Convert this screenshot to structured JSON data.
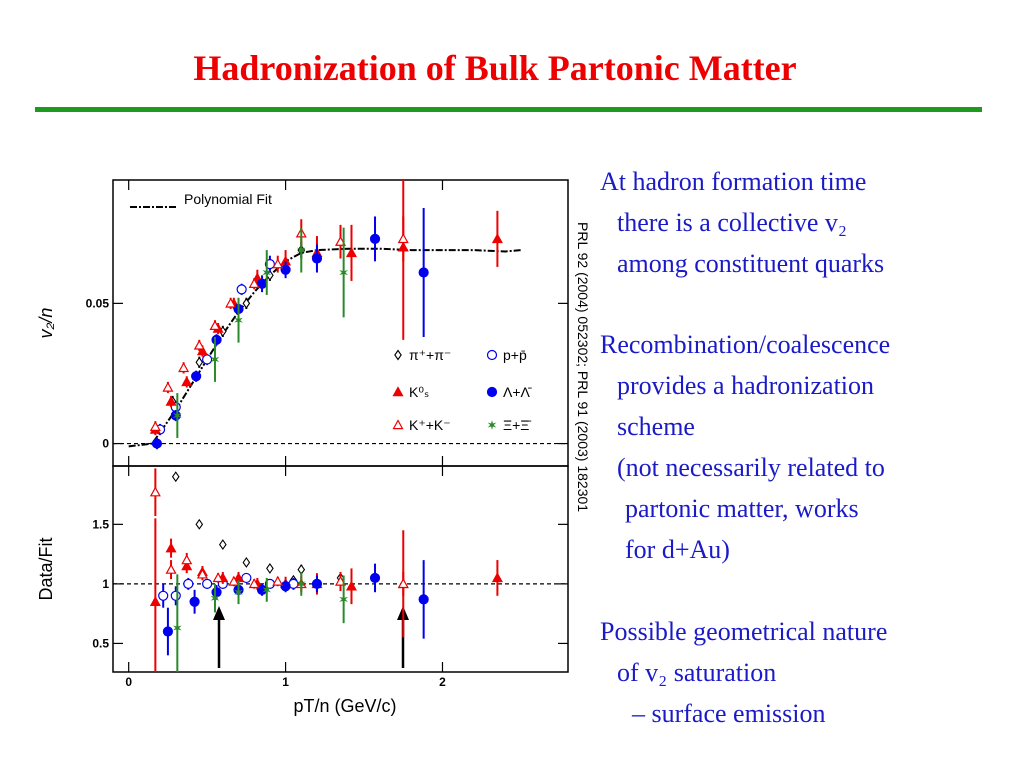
{
  "slide_title": "Hadronization of Bulk Partonic Matter",
  "citation": "PRL 92 (2004) 052302; PRL 91 (2003) 182301",
  "notes": [
    [
      "At hadron formation time",
      "there is a collective v₂",
      "among constituent quarks"
    ],
    [
      "Recombination/coalescence",
      "provides a hadronization",
      "scheme",
      "(not necessarily related to",
      "partonic matter, works",
      "for d+Au)"
    ],
    [
      "Possible geometrical nature",
      "of v₂ saturation",
      "– surface emission"
    ]
  ],
  "chart_data": [
    {
      "type": "scatter",
      "ylabel": "v₂/n",
      "xlim": [
        -0.1,
        2.8
      ],
      "ylim": [
        -0.008,
        0.094
      ],
      "xticks": [
        0,
        1,
        2
      ],
      "yticks": [
        0,
        0.05
      ],
      "refline": 0,
      "series": [
        {
          "name": "Polynomial Fit",
          "style": "dash-dot",
          "color": "#000000",
          "x": [
            0.0,
            0.15,
            0.2,
            0.3,
            0.4,
            0.5,
            0.6,
            0.7,
            0.8,
            0.9,
            1.0,
            1.1,
            1.2,
            1.4,
            1.6,
            1.8,
            2.0,
            2.2,
            2.4,
            2.5
          ],
          "values": [
            -0.001,
            0.0,
            0.004,
            0.012,
            0.021,
            0.03,
            0.039,
            0.047,
            0.054,
            0.06,
            0.065,
            0.068,
            0.069,
            0.0695,
            0.0695,
            0.069,
            0.069,
            0.069,
            0.0685,
            0.069
          ]
        },
        {
          "name": "π⁺+π⁻",
          "marker": "diamond-open",
          "color": "#000000",
          "x": [
            0.28,
            0.45,
            0.6,
            0.75,
            0.9,
            1.1
          ],
          "values": [
            0.015,
            0.029,
            0.04,
            0.05,
            0.06,
            0.069
          ],
          "errors": [
            0.002,
            0.002,
            0.002,
            0.002,
            0.002,
            0.003
          ]
        },
        {
          "name": "p+p̄",
          "marker": "circle-open",
          "color": "#0000ee",
          "x": [
            0.2,
            0.3,
            0.5,
            0.72,
            0.9
          ],
          "values": [
            0.005,
            0.013,
            0.03,
            0.055,
            0.064
          ],
          "errors": [
            0.002,
            0.002,
            0.002,
            0.002,
            0.003
          ]
        },
        {
          "name": "K⁰ₛ",
          "marker": "triangle",
          "color": "#ee0000",
          "x": [
            0.17,
            0.27,
            0.37,
            0.47,
            0.57,
            0.67,
            0.82,
            1.0,
            1.2,
            1.42,
            1.75,
            2.35
          ],
          "values": [
            0.005,
            0.015,
            0.022,
            0.033,
            0.041,
            0.05,
            0.059,
            0.065,
            0.068,
            0.068,
            0.07,
            0.073
          ],
          "errors": [
            0.002,
            0.002,
            0.002,
            0.002,
            0.002,
            0.002,
            0.003,
            0.004,
            0.006,
            0.01,
            0.033,
            0.01
          ]
        },
        {
          "name": "Λ+Λ̄",
          "marker": "circle",
          "color": "#0000ee",
          "x": [
            0.18,
            0.3,
            0.43,
            0.56,
            0.7,
            0.85,
            1.0,
            1.2,
            1.57,
            1.88
          ],
          "values": [
            0.0,
            0.01,
            0.024,
            0.037,
            0.048,
            0.057,
            0.062,
            0.066,
            0.073,
            0.061
          ],
          "errors": [
            0.002,
            0.002,
            0.002,
            0.002,
            0.002,
            0.003,
            0.003,
            0.005,
            0.008,
            0.023
          ]
        },
        {
          "name": "K⁺+K⁻",
          "marker": "triangle-open",
          "color": "#ee0000",
          "x": [
            0.17,
            0.25,
            0.35,
            0.45,
            0.55,
            0.65,
            0.8,
            0.95,
            1.1,
            1.35,
            1.75
          ],
          "values": [
            0.006,
            0.02,
            0.027,
            0.035,
            0.042,
            0.05,
            0.057,
            0.064,
            0.075,
            0.072,
            0.073
          ],
          "errors": [
            0.002,
            0.002,
            0.002,
            0.002,
            0.002,
            0.002,
            0.002,
            0.003,
            0.005,
            0.006,
            0.008
          ]
        },
        {
          "name": "Ξ+Ξ̄",
          "marker": "star",
          "color": "#2a8a2a",
          "x": [
            0.31,
            0.55,
            0.7,
            0.88,
            1.1,
            1.37
          ],
          "values": [
            0.01,
            0.03,
            0.044,
            0.061,
            0.069,
            0.061
          ],
          "errors": [
            0.008,
            0.008,
            0.008,
            0.008,
            0.008,
            0.016
          ]
        }
      ]
    },
    {
      "type": "scatter",
      "ylabel": "Data/Fit",
      "xlabel": "pT/n (GeV/c)",
      "xlim": [
        -0.1,
        2.8
      ],
      "ylim": [
        0.26,
        1.99
      ],
      "xticks": [
        0,
        1,
        2
      ],
      "yticks": [
        0.5,
        1,
        1.5
      ],
      "refline": 1,
      "series": [
        {
          "marker": "diamond-open",
          "color": "#000000",
          "x": [
            0.3,
            0.45,
            0.6,
            0.75,
            0.9,
            1.05,
            1.1,
            1.35
          ],
          "values": [
            1.9,
            1.5,
            1.33,
            1.18,
            1.13,
            1.03,
            1.12,
            1.05
          ],
          "errors": [
            0.02,
            0.02,
            0.02,
            0.02,
            0.02,
            0.03,
            0.04,
            0.05
          ]
        },
        {
          "marker": "circle-open",
          "color": "#0000ee",
          "x": [
            0.22,
            0.3,
            0.38,
            0.5,
            0.6,
            0.75,
            0.9,
            1.05
          ],
          "values": [
            0.9,
            0.9,
            1.0,
            1.0,
            1.0,
            1.05,
            1.0,
            1.0
          ],
          "errors": [
            0.1,
            0.08,
            0.05,
            0.04,
            0.04,
            0.04,
            0.04,
            0.05
          ]
        },
        {
          "marker": "triangle",
          "color": "#ee0000",
          "x": [
            0.17,
            0.27,
            0.37,
            0.47,
            0.6,
            0.7,
            0.82,
            1.0,
            1.2,
            1.42,
            1.75,
            2.35
          ],
          "values": [
            0.85,
            1.3,
            1.15,
            1.1,
            1.05,
            1.05,
            1.0,
            1.0,
            1.0,
            0.98,
            1.0,
            1.05
          ],
          "errors": [
            0.7,
            0.08,
            0.06,
            0.05,
            0.05,
            0.05,
            0.05,
            0.06,
            0.09,
            0.15,
            0.45,
            0.15
          ]
        },
        {
          "marker": "circle",
          "color": "#0000ee",
          "x": [
            0.25,
            0.42,
            0.56,
            0.7,
            0.85,
            1.0,
            1.2,
            1.57,
            1.88
          ],
          "values": [
            0.6,
            0.85,
            0.93,
            0.95,
            0.95,
            0.98,
            1.0,
            1.05,
            0.87
          ],
          "errors": [
            0.2,
            0.1,
            0.06,
            0.05,
            0.05,
            0.05,
            0.07,
            0.12,
            0.33
          ]
        },
        {
          "marker": "triangle-open",
          "color": "#ee0000",
          "x": [
            0.17,
            0.27,
            0.37,
            0.47,
            0.57,
            0.67,
            0.8,
            0.95,
            1.1,
            1.35,
            1.75
          ],
          "values": [
            1.77,
            1.12,
            1.2,
            1.08,
            1.05,
            1.02,
            1.0,
            1.02,
            1.0,
            1.02,
            1.0
          ],
          "errors": [
            0.2,
            0.08,
            0.06,
            0.05,
            0.04,
            0.04,
            0.04,
            0.04,
            0.07,
            0.08,
            0.1
          ]
        },
        {
          "marker": "star",
          "color": "#2a8a2a",
          "x": [
            0.31,
            0.55,
            0.7,
            0.88,
            1.1,
            1.37
          ],
          "values": [
            0.63,
            0.88,
            0.93,
            0.95,
            1.0,
            0.87
          ],
          "errors": [
            0.45,
            0.12,
            0.1,
            0.1,
            0.1,
            0.2
          ]
        }
      ]
    }
  ]
}
